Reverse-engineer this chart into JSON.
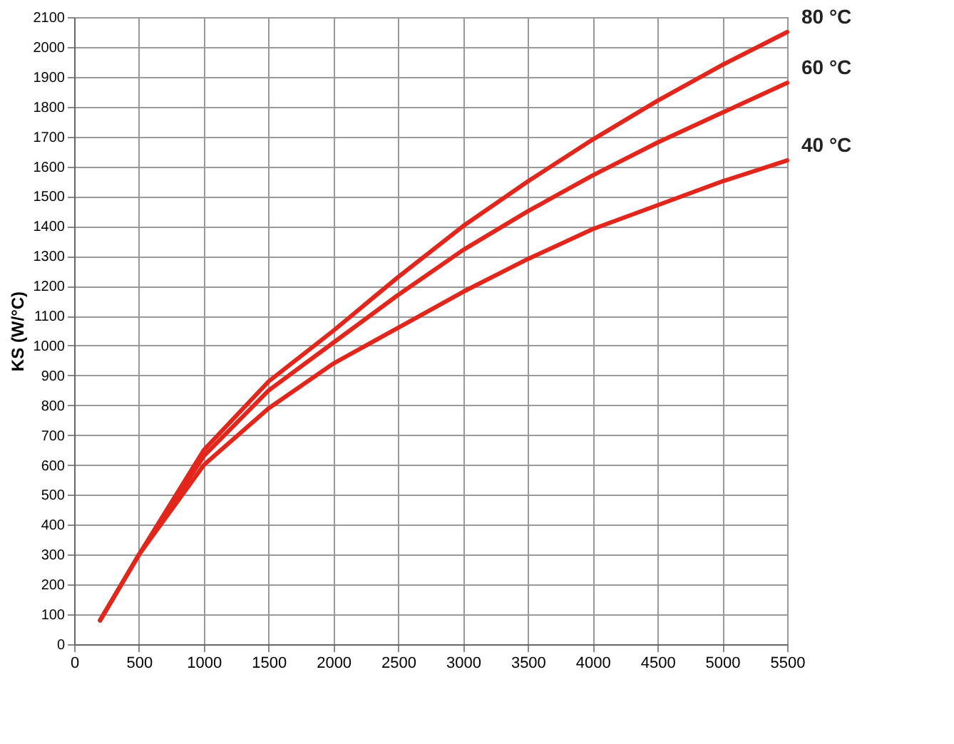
{
  "chart_data": {
    "type": "line",
    "ylabel": "KS (W/°C)",
    "x": [
      200,
      500,
      1000,
      1500,
      2000,
      2500,
      3000,
      3500,
      4000,
      4500,
      5000,
      5500
    ],
    "series": [
      {
        "name": "80 °C",
        "color": "#e3261b",
        "values": [
          80,
          300,
          650,
          880,
          1050,
          1230,
          1400,
          1550,
          1690,
          1820,
          1940,
          2050
        ]
      },
      {
        "name": "60 °C",
        "color": "#e3261b",
        "values": [
          80,
          300,
          630,
          850,
          1010,
          1170,
          1320,
          1450,
          1570,
          1680,
          1780,
          1880
        ]
      },
      {
        "name": "40 °C",
        "color": "#e3261b",
        "values": [
          80,
          300,
          600,
          790,
          940,
          1060,
          1180,
          1290,
          1390,
          1470,
          1550,
          1620
        ]
      }
    ],
    "xlim": [
      0,
      5500
    ],
    "xticks": [
      0,
      500,
      1000,
      1500,
      2000,
      2500,
      3000,
      3500,
      4000,
      4500,
      5000,
      5500
    ],
    "ylim": [
      0,
      2100
    ],
    "yticks": [
      0,
      100,
      200,
      300,
      400,
      500,
      600,
      700,
      800,
      900,
      1000,
      1100,
      1200,
      1300,
      1400,
      1500,
      1600,
      1700,
      1800,
      1900,
      2000,
      2100
    ],
    "grid": true,
    "marker": "none",
    "line_style": "solid"
  }
}
